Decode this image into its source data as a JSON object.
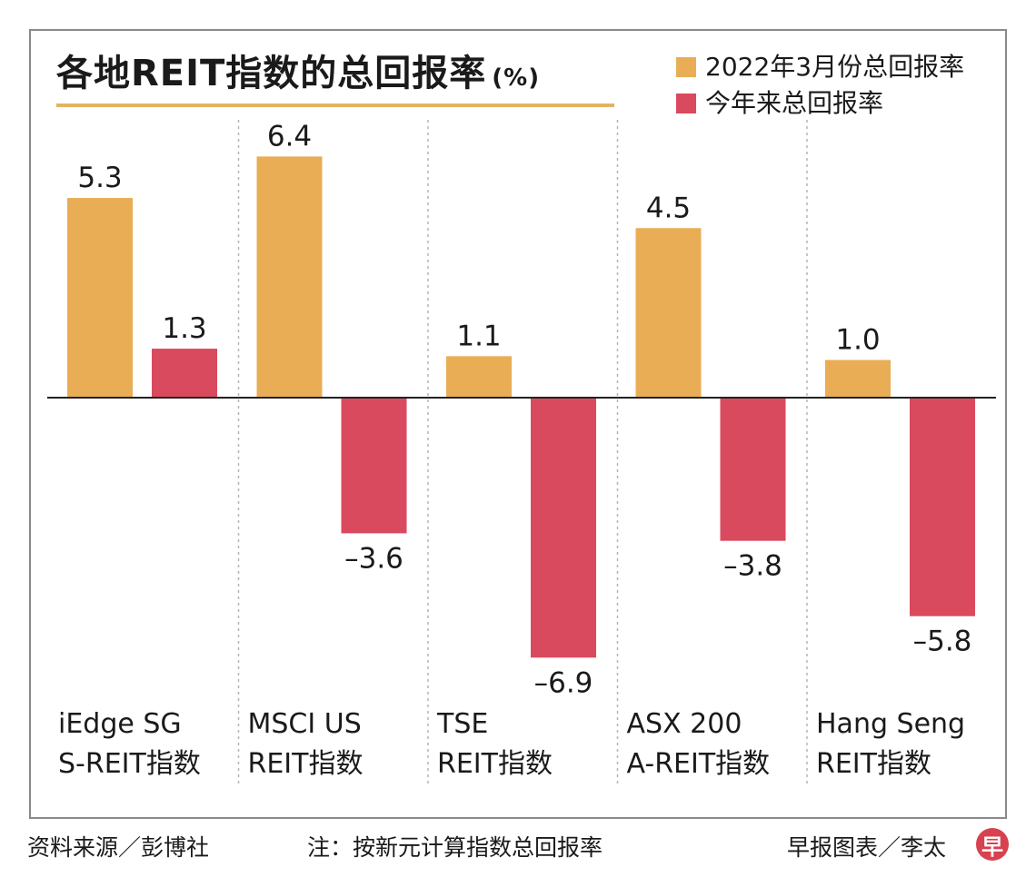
{
  "header": {
    "title": "各地REIT指数的总回报率",
    "unit": "(%)"
  },
  "legend": [
    {
      "label": "2022年3月份总回报率",
      "color": "#e9ad55"
    },
    {
      "label": "今年来总回报率",
      "color": "#d94a5e"
    }
  ],
  "chart_data": {
    "type": "bar",
    "title": "各地REIT指数的总回报率",
    "categories": [
      [
        "iEdge SG",
        "S-REIT指数"
      ],
      [
        "MSCI US",
        "REIT指数"
      ],
      [
        "TSE",
        "REIT指数"
      ],
      [
        "ASX 200",
        "A-REIT指数"
      ],
      [
        "Hang Seng",
        "REIT指数"
      ]
    ],
    "series": [
      {
        "name": "2022年3月份总回报率",
        "values": [
          5.3,
          6.4,
          1.1,
          4.5,
          1.0
        ],
        "labels": [
          "5.3",
          "6.4",
          "1.1",
          "4.5",
          "1.0"
        ],
        "color": "#e9ad55"
      },
      {
        "name": "今年来总回报率",
        "values": [
          1.3,
          -3.6,
          -6.9,
          -3.8,
          -5.8
        ],
        "labels": [
          "1.3",
          "–3.6",
          "–6.9",
          "–3.8",
          "–5.8"
        ],
        "color": "#d94a5e"
      }
    ],
    "grid": false,
    "legend_position": "top-right"
  },
  "footer": {
    "source": "资料来源／彭博社",
    "note": "注：按新元计算指数总回报率",
    "credit": "早报图表／李太",
    "logo": "早"
  }
}
